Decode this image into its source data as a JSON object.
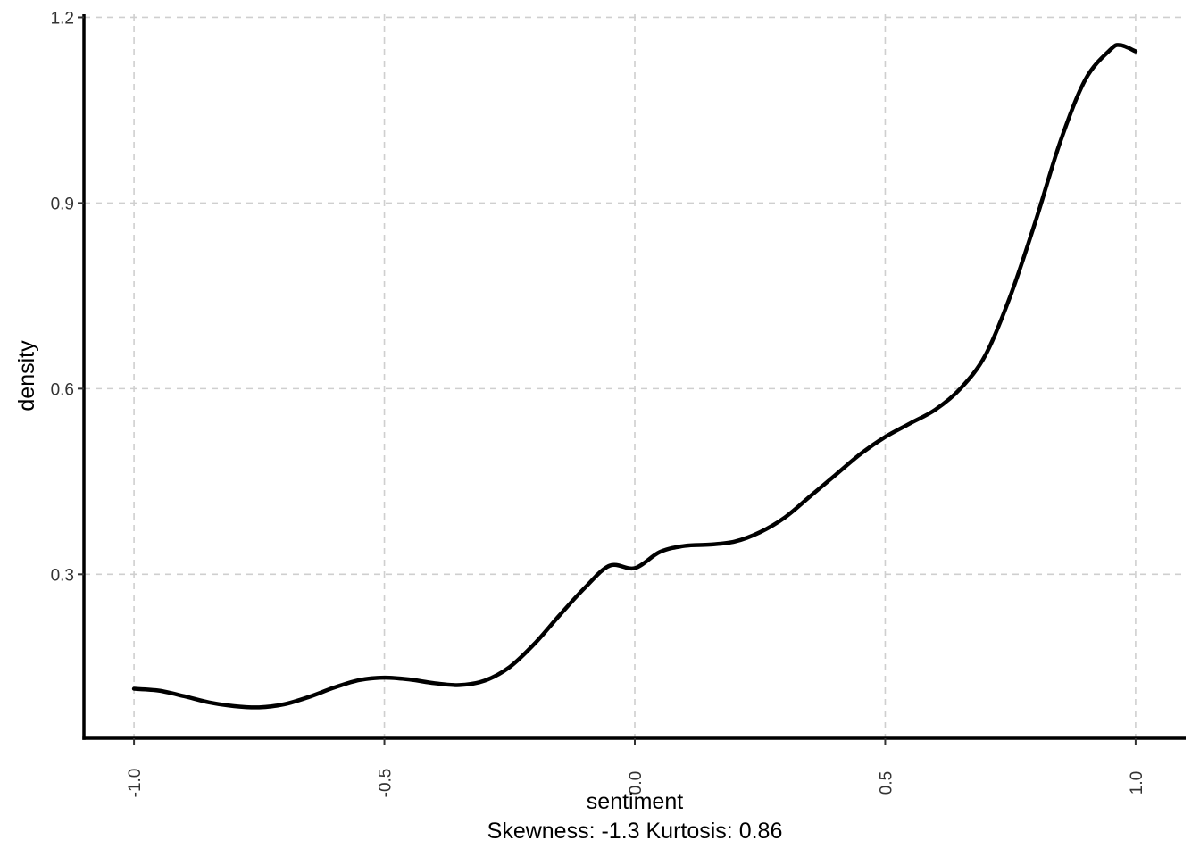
{
  "chart_data": {
    "type": "line",
    "title": "",
    "xlabel": "sentiment",
    "caption": "Skewness: -1.3 Kurtosis: 0.86",
    "ylabel": "density",
    "xlim": [
      -1.1,
      1.1
    ],
    "ylim": [
      0.035,
      1.205
    ],
    "x_ticks": [
      -1.0,
      -0.5,
      0.0,
      0.5,
      1.0
    ],
    "x_tick_labels": [
      "-1.0",
      "-0.5",
      "0.0",
      "0.5",
      "1.0"
    ],
    "y_ticks": [
      0.3,
      0.6,
      0.9,
      1.2
    ],
    "y_tick_labels": [
      "0.3",
      "0.6",
      "0.9",
      "1.2"
    ],
    "grid": true,
    "legend": "none",
    "line_color": "#000000",
    "series": [
      {
        "x": [
          -1.0,
          -0.95,
          -0.9,
          -0.85,
          -0.8,
          -0.75,
          -0.7,
          -0.65,
          -0.6,
          -0.55,
          -0.5,
          -0.45,
          -0.4,
          -0.35,
          -0.3,
          -0.25,
          -0.2,
          -0.15,
          -0.1,
          -0.05,
          0.0,
          0.05,
          0.1,
          0.15,
          0.2,
          0.25,
          0.3,
          0.35,
          0.4,
          0.45,
          0.5,
          0.55,
          0.6,
          0.65,
          0.7,
          0.75,
          0.8,
          0.85,
          0.9,
          0.95,
          0.97,
          1.0
        ],
        "y": [
          0.115,
          0.112,
          0.103,
          0.093,
          0.087,
          0.085,
          0.09,
          0.102,
          0.117,
          0.129,
          0.133,
          0.13,
          0.124,
          0.121,
          0.128,
          0.15,
          0.188,
          0.234,
          0.278,
          0.314,
          0.31,
          0.336,
          0.346,
          0.348,
          0.353,
          0.368,
          0.392,
          0.426,
          0.46,
          0.494,
          0.522,
          0.544,
          0.566,
          0.6,
          0.654,
          0.75,
          0.87,
          1.0,
          1.1,
          1.148,
          1.155,
          1.145
        ]
      }
    ]
  }
}
